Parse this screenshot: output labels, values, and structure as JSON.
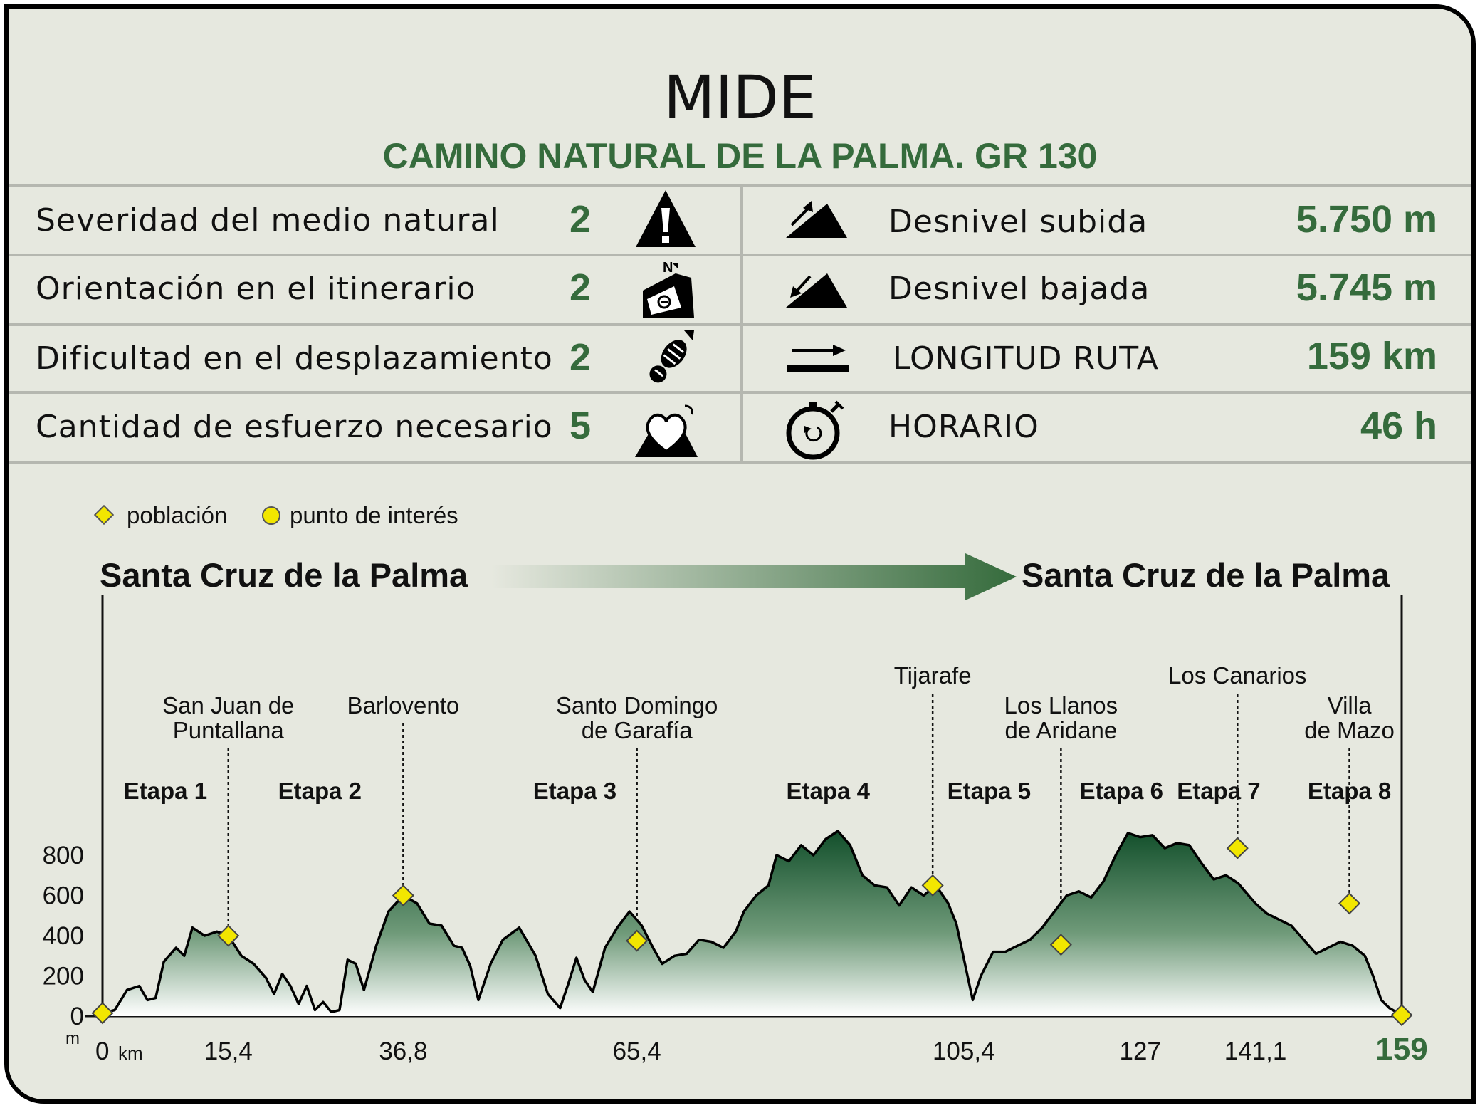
{
  "header": {
    "title": "MIDE",
    "subtitle": "CAMINO NATURAL DE LA PALMA. GR 130"
  },
  "mide_rows": [
    {
      "label": "Severidad del medio natural",
      "value": "2",
      "icon": "alert-triangle-icon"
    },
    {
      "label": "Orientación en el itinerario",
      "value": "2",
      "icon": "orientation-sign-icon"
    },
    {
      "label": "Dificultad en el desplazamiento",
      "value": "2",
      "icon": "footprint-icon"
    },
    {
      "label": "Cantidad de esfuerzo necesario",
      "value": "5",
      "icon": "heart-effort-icon"
    }
  ],
  "route_stats": [
    {
      "label": "Desnivel subida",
      "value": "5.750 m",
      "icon": "ascent-slope-icon"
    },
    {
      "label": "Desnivel bajada",
      "value": "5.745 m",
      "icon": "descent-slope-icon"
    },
    {
      "label": "LONGITUD RUTA",
      "value": "159 km",
      "icon": "distance-arrow-icon"
    },
    {
      "label": "HORARIO",
      "value": "46 h",
      "icon": "stopwatch-icon"
    }
  ],
  "colors": {
    "accent_green": "#356b3c",
    "profile_dark": "#1f5a35",
    "marker_yellow": "#f2e600",
    "background": "#e6e8df"
  },
  "chart_data": {
    "type": "area",
    "legend": {
      "placement": "top-left",
      "items": [
        {
          "label": "población",
          "marker": "diamond"
        },
        {
          "label": "punto de interés",
          "marker": "circle"
        }
      ]
    },
    "start_label": "Santa Cruz de la Palma",
    "end_label": "Santa Cruz de la Palma",
    "xlabel": "km",
    "ylabel": "m",
    "xlim": [
      0,
      159
    ],
    "ylim": [
      0,
      800
    ],
    "yticks": [
      "0",
      "200",
      "400",
      "600",
      "800"
    ],
    "xticks": [
      {
        "value": 0,
        "label": "0"
      },
      {
        "value": 15.4,
        "label": "15,4"
      },
      {
        "value": 36.8,
        "label": "36,8"
      },
      {
        "value": 65.4,
        "label": "65,4"
      },
      {
        "value": 105.4,
        "label": "105,4"
      },
      {
        "value": 127,
        "label": "127"
      },
      {
        "value": 141.1,
        "label": "141,1"
      },
      {
        "value": 159,
        "label": "159"
      }
    ],
    "stages": [
      {
        "label": "Etapa 1",
        "x": 7.7
      },
      {
        "label": "Etapa 2",
        "x": 26.6
      },
      {
        "label": "Etapa 3",
        "x": 57.8
      },
      {
        "label": "Etapa 4",
        "x": 88.8
      },
      {
        "label": "Etapa 5",
        "x": 108.5
      },
      {
        "label": "Etapa 6",
        "x": 124.7
      },
      {
        "label": "Etapa 7",
        "x": 136.6
      },
      {
        "label": "Etapa 8",
        "x": 152.6
      }
    ],
    "towns": [
      {
        "name": [
          "San Juan de",
          "Puntallana"
        ],
        "x": 15.4,
        "elev": 400
      },
      {
        "name": [
          "Barlovento"
        ],
        "x": 36.8,
        "elev": 600
      },
      {
        "name": [
          "Santo Domingo",
          "de Garafía"
        ],
        "x": 65.4,
        "elev": 375
      },
      {
        "name": [
          "Tijarafe"
        ],
        "x": 101.6,
        "elev": 650,
        "label_level": "high"
      },
      {
        "name": [
          "Los Llanos",
          "de Aridane"
        ],
        "x": 117.3,
        "elev": 355
      },
      {
        "name": [
          "Los Canarios"
        ],
        "x": 138.9,
        "elev": 835,
        "label_level": "high"
      },
      {
        "name": [
          "Villa",
          "de Mazo"
        ],
        "x": 152.6,
        "elev": 560
      }
    ],
    "endpoints": [
      {
        "x": 0,
        "elev": 15
      },
      {
        "x": 159,
        "elev": 5
      }
    ],
    "profile": [
      [
        0,
        15
      ],
      [
        1.5,
        30
      ],
      [
        3,
        130
      ],
      [
        4.5,
        150
      ],
      [
        5.5,
        80
      ],
      [
        6.5,
        90
      ],
      [
        7.5,
        270
      ],
      [
        9,
        340
      ],
      [
        10,
        300
      ],
      [
        11,
        440
      ],
      [
        12.5,
        400
      ],
      [
        14,
        420
      ],
      [
        15.4,
        400
      ],
      [
        17,
        300
      ],
      [
        18.5,
        260
      ],
      [
        20,
        190
      ],
      [
        21,
        110
      ],
      [
        22,
        210
      ],
      [
        23,
        150
      ],
      [
        24,
        60
      ],
      [
        25,
        150
      ],
      [
        26,
        30
      ],
      [
        27,
        70
      ],
      [
        28,
        20
      ],
      [
        29,
        30
      ],
      [
        30,
        280
      ],
      [
        31,
        260
      ],
      [
        32,
        130
      ],
      [
        33.5,
        350
      ],
      [
        35,
        520
      ],
      [
        36.8,
        600
      ],
      [
        38.5,
        560
      ],
      [
        40,
        460
      ],
      [
        41.5,
        450
      ],
      [
        43,
        350
      ],
      [
        44,
        340
      ],
      [
        45,
        250
      ],
      [
        46,
        80
      ],
      [
        47.5,
        260
      ],
      [
        49,
        380
      ],
      [
        51,
        440
      ],
      [
        53,
        300
      ],
      [
        54.5,
        110
      ],
      [
        56,
        40
      ],
      [
        57,
        160
      ],
      [
        58,
        290
      ],
      [
        59,
        180
      ],
      [
        60,
        120
      ],
      [
        61.5,
        340
      ],
      [
        63,
        440
      ],
      [
        64.5,
        520
      ],
      [
        66,
        450
      ],
      [
        67.5,
        330
      ],
      [
        68.5,
        260
      ],
      [
        70,
        300
      ],
      [
        71.5,
        310
      ],
      [
        73,
        380
      ],
      [
        74.5,
        370
      ],
      [
        76,
        340
      ],
      [
        77.5,
        420
      ],
      [
        78.5,
        520
      ],
      [
        80,
        600
      ],
      [
        81.5,
        650
      ],
      [
        82.5,
        800
      ],
      [
        84,
        770
      ],
      [
        85.5,
        850
      ],
      [
        87,
        800
      ],
      [
        88.5,
        880
      ],
      [
        90,
        920
      ],
      [
        91.5,
        850
      ],
      [
        93,
        700
      ],
      [
        94.5,
        650
      ],
      [
        96,
        640
      ],
      [
        97.5,
        550
      ],
      [
        99,
        640
      ],
      [
        100.5,
        600
      ],
      [
        102,
        650
      ],
      [
        103.5,
        560
      ],
      [
        104.5,
        460
      ],
      [
        105.5,
        270
      ],
      [
        106.5,
        80
      ],
      [
        107.5,
        200
      ],
      [
        109,
        320
      ],
      [
        110.5,
        320
      ],
      [
        112,
        350
      ],
      [
        113.5,
        380
      ],
      [
        115,
        440
      ],
      [
        116.5,
        520
      ],
      [
        118,
        600
      ],
      [
        119.5,
        620
      ],
      [
        121,
        590
      ],
      [
        122.5,
        670
      ],
      [
        124,
        800
      ],
      [
        125.5,
        910
      ],
      [
        127,
        890
      ],
      [
        128.5,
        900
      ],
      [
        130,
        835
      ],
      [
        131.5,
        860
      ],
      [
        133,
        850
      ],
      [
        134.5,
        760
      ],
      [
        136,
        680
      ],
      [
        137.5,
        700
      ],
      [
        139,
        660
      ],
      [
        141.1,
        560
      ],
      [
        142.5,
        510
      ],
      [
        144,
        480
      ],
      [
        145.5,
        450
      ],
      [
        147,
        380
      ],
      [
        148.5,
        310
      ],
      [
        150,
        340
      ],
      [
        151.5,
        370
      ],
      [
        153,
        350
      ],
      [
        154.5,
        300
      ],
      [
        155.5,
        200
      ],
      [
        156.5,
        80
      ],
      [
        157.5,
        40
      ],
      [
        159,
        5
      ]
    ]
  }
}
